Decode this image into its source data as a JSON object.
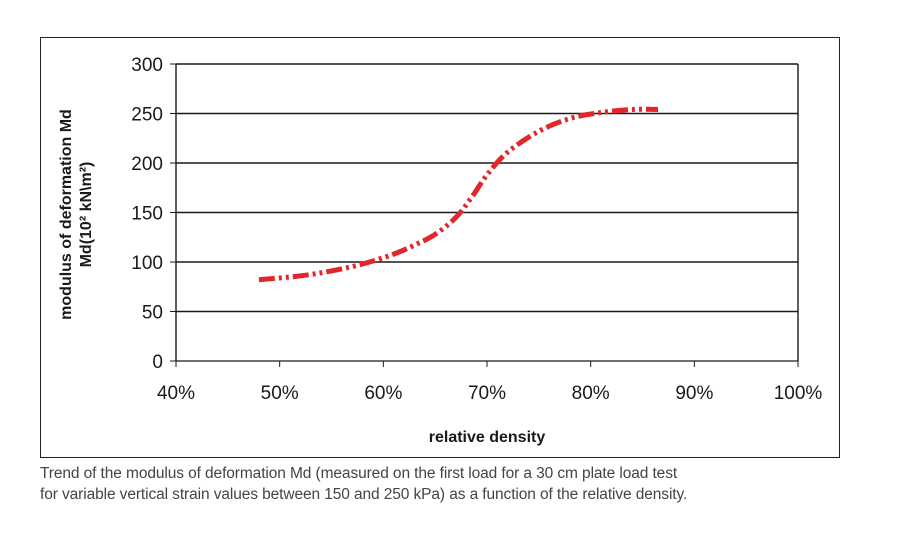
{
  "chart_data": {
    "type": "line",
    "xlabel": "relative density",
    "ylabel_line1": "modulus of deformation Md",
    "ylabel_line2": "Md(10² kN\\m²)",
    "x_ticks": [
      "40%",
      "50%",
      "60%",
      "70%",
      "80%",
      "90%",
      "100%"
    ],
    "y_ticks": [
      "0",
      "50",
      "100",
      "150",
      "200",
      "250",
      "300"
    ],
    "xlim": [
      40,
      100
    ],
    "ylim": [
      0,
      300
    ],
    "grid": "horizontal",
    "line_style": "dash-dot-dot",
    "series": [
      {
        "color": "#e3262b",
        "x": [
          48,
          52,
          55,
          58,
          61,
          63,
          65,
          67,
          68.5,
          70,
          72,
          75,
          78,
          81,
          84,
          86.5
        ],
        "values": [
          82,
          86,
          91,
          98,
          108,
          117,
          128,
          145,
          165,
          188,
          211,
          232,
          245,
          251,
          254,
          254
        ]
      }
    ]
  },
  "caption": {
    "line1": "Trend of the modulus of deformation Md (measured on the first load for a 30 cm plate load test",
    "line2": "for variable vertical strain values between 150 and 250 kPa) as a function of the relative density."
  }
}
